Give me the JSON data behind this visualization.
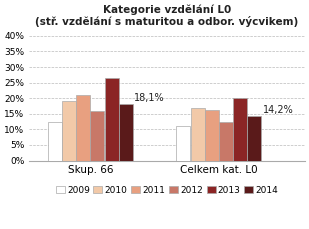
{
  "title_line1": "Kategorie vzdělání L0",
  "title_line2": "(stř. vzdělání s maturitou a odbor. výcvikem)",
  "groups": [
    "Skup. 66",
    "Celkem kat. L0"
  ],
  "years": [
    "2009",
    "2010",
    "2011",
    "2012",
    "2013",
    "2014"
  ],
  "values": [
    [
      12.5,
      19.0,
      21.0,
      16.0,
      26.5,
      18.1
    ],
    [
      11.0,
      17.0,
      16.2,
      12.5,
      20.0,
      14.2
    ]
  ],
  "annotations": [
    {
      "group": 0,
      "year_idx": 5,
      "text": "18,1%"
    },
    {
      "group": 1,
      "year_idx": 5,
      "text": "14,2%"
    }
  ],
  "colors": [
    "#FFFFFF",
    "#F2C9A8",
    "#E8A080",
    "#C87868",
    "#8B2525",
    "#5A1A1A"
  ],
  "bar_edge_color": "#AAAAAA",
  "ylim": [
    0,
    42
  ],
  "yticks": [
    0,
    5,
    10,
    15,
    20,
    25,
    30,
    35,
    40
  ],
  "title_fontsize": 7.5,
  "legend_fontsize": 6.5,
  "tick_fontsize": 6.5,
  "annotation_fontsize": 7.0,
  "group_label_fontsize": 7.5
}
